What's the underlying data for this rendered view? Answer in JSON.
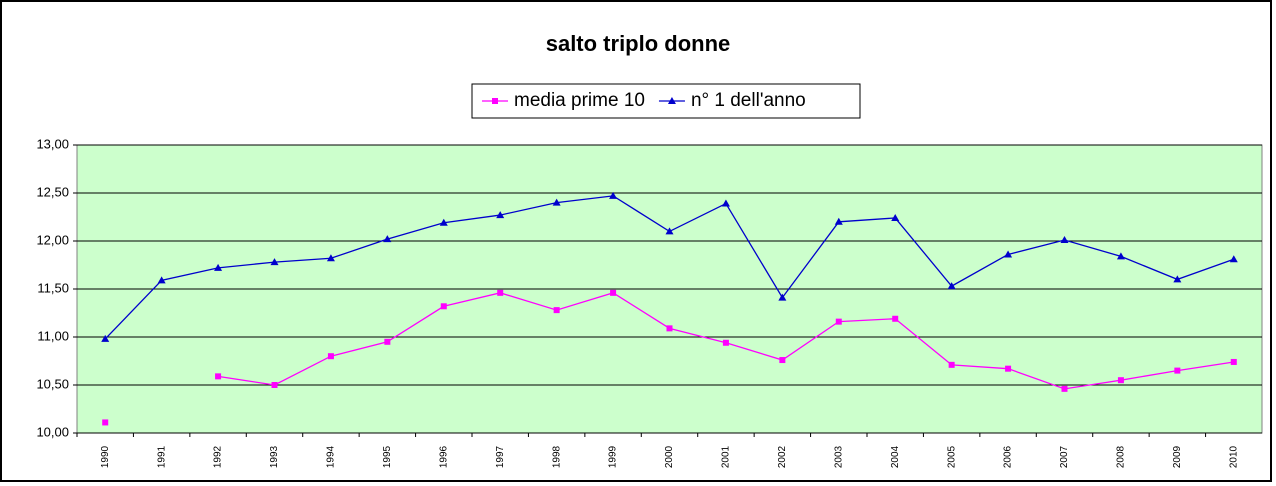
{
  "chart_data": {
    "type": "line",
    "title": "salto triplo donne",
    "categories": [
      "1990",
      "1991",
      "1992",
      "1993",
      "1994",
      "1995",
      "1996",
      "1997",
      "1998",
      "1999",
      "2000",
      "2001",
      "2002",
      "2003",
      "2004",
      "2005",
      "2006",
      "2007",
      "2008",
      "2009",
      "2010"
    ],
    "series": [
      {
        "name": "media prime 10",
        "color": "#ff00ff",
        "marker": "square",
        "values": [
          10.11,
          null,
          10.59,
          10.5,
          10.8,
          10.95,
          11.32,
          11.46,
          11.28,
          11.46,
          11.09,
          10.94,
          10.76,
          11.16,
          11.19,
          10.71,
          10.67,
          10.46,
          10.55,
          10.65,
          10.74
        ]
      },
      {
        "name": "n° 1 dell'anno",
        "color": "#0000cc",
        "marker": "triangle",
        "values": [
          10.98,
          11.59,
          11.72,
          11.78,
          11.82,
          12.02,
          12.19,
          12.27,
          12.4,
          12.47,
          12.1,
          12.39,
          11.41,
          12.2,
          12.24,
          11.53,
          11.86,
          12.01,
          11.84,
          11.6,
          11.81
        ]
      }
    ],
    "ylim": [
      10,
      13
    ],
    "yticks": [
      {
        "value": 10,
        "label": "10,00"
      },
      {
        "value": 10.5,
        "label": "10,50"
      },
      {
        "value": 11,
        "label": "11,00"
      },
      {
        "value": 11.5,
        "label": "11,50"
      },
      {
        "value": 12,
        "label": "12,00"
      },
      {
        "value": 12.5,
        "label": "12,50"
      },
      {
        "value": 13,
        "label": "13,00"
      }
    ],
    "grid": true,
    "plot_background": "#ccffcc",
    "legend": "top"
  }
}
